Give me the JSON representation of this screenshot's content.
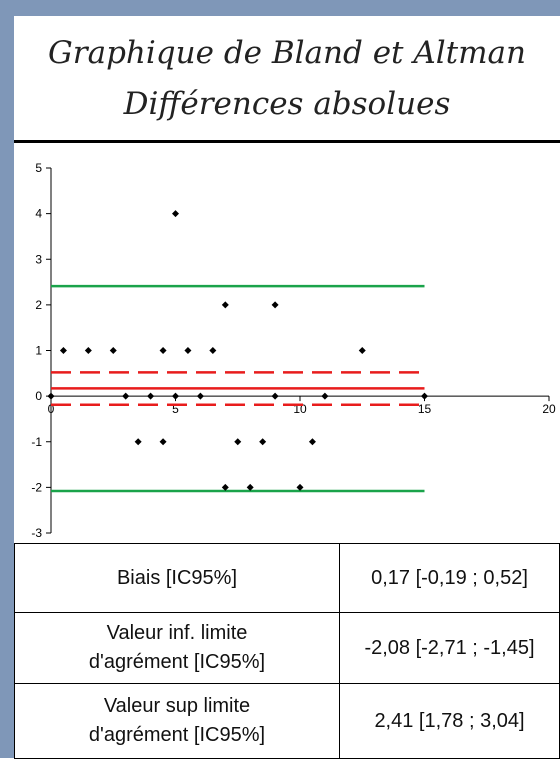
{
  "chart_data": {
    "type": "scatter",
    "title_line1": "Graphique de Bland et Altman",
    "title_line2": "Différences absolues",
    "xlim": [
      0,
      20
    ],
    "ylim": [
      -3,
      5
    ],
    "x_ticks": [
      "0",
      "5",
      "10",
      "15",
      "20"
    ],
    "y_ticks": [
      "-3",
      "-2",
      "-1",
      "0",
      "1",
      "2",
      "3",
      "4",
      "5"
    ],
    "points": [
      [
        0,
        0
      ],
      [
        0.5,
        1
      ],
      [
        1.5,
        1
      ],
      [
        2.5,
        1
      ],
      [
        3,
        0
      ],
      [
        3.5,
        -1
      ],
      [
        4,
        0
      ],
      [
        4.5,
        -1
      ],
      [
        4.5,
        1
      ],
      [
        5,
        4
      ],
      [
        5,
        0
      ],
      [
        5.5,
        1
      ],
      [
        6,
        0
      ],
      [
        6.5,
        1
      ],
      [
        7,
        2
      ],
      [
        7,
        -2
      ],
      [
        7.5,
        -1
      ],
      [
        8,
        -2
      ],
      [
        8.5,
        -1
      ],
      [
        9,
        2
      ],
      [
        9,
        0
      ],
      [
        10,
        -2
      ],
      [
        10.5,
        -1
      ],
      [
        11,
        0
      ],
      [
        12.5,
        1
      ],
      [
        15,
        0
      ]
    ],
    "lines": {
      "bias": {
        "y": 0.17,
        "style": "solid",
        "color": "#e81c1c"
      },
      "bias_ci_low": {
        "y": -0.19,
        "style": "dashed",
        "color": "#e81c1c"
      },
      "bias_ci_high": {
        "y": 0.52,
        "style": "dashed",
        "color": "#e81c1c"
      },
      "lower_limit": {
        "y": -2.08,
        "style": "solid",
        "color": "#1aa34a"
      },
      "upper_limit": {
        "y": 2.41,
        "style": "solid",
        "color": "#1aa34a"
      },
      "line_x_range": [
        0,
        15
      ]
    }
  },
  "stats_table": {
    "rows": [
      {
        "label_lines": [
          "Biais [IC95%]"
        ],
        "value": "0,17 [-0,19 ; 0,52]"
      },
      {
        "label_lines": [
          "Valeur inf. limite",
          "d'agrément [IC95%]"
        ],
        "value": "-2,08 [-2,71 ; -1,45]"
      },
      {
        "label_lines": [
          "Valeur sup limite",
          "d'agrément [IC95%]"
        ],
        "value": "2,41 [1,78 ; 3,04]"
      }
    ]
  }
}
